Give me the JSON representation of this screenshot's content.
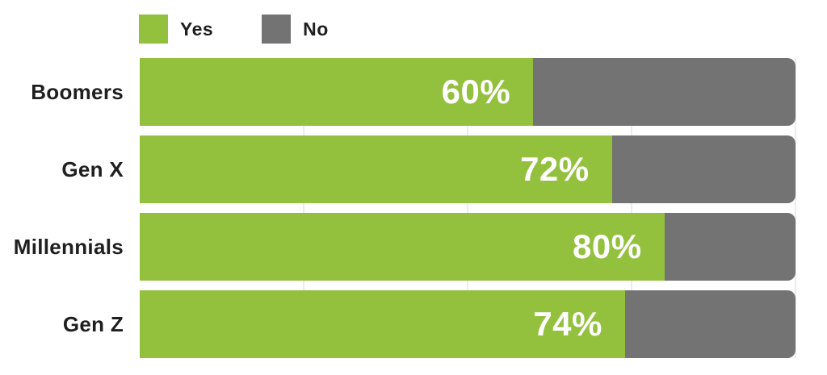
{
  "chart_data": {
    "type": "bar",
    "orientation": "horizontal",
    "stacked": true,
    "categories": [
      "Boomers",
      "Gen X",
      "Millennials",
      "Gen Z"
    ],
    "series": [
      {
        "name": "Yes",
        "values": [
          60,
          72,
          80,
          74
        ],
        "color": "#93C13E"
      },
      {
        "name": "No",
        "values": [
          40,
          28,
          20,
          26
        ],
        "color": "#737373"
      }
    ],
    "bar_labels": [
      "60%",
      "72%",
      "80%",
      "74%"
    ],
    "xlim": [
      0,
      100
    ],
    "gridlines_pct": [
      25,
      50,
      75,
      100
    ],
    "gridline_color": "#ECECEC",
    "legend_position": "top-left",
    "label_text_color": "#1F1F1F",
    "bar_label_text_color": "#FFFFFF"
  }
}
